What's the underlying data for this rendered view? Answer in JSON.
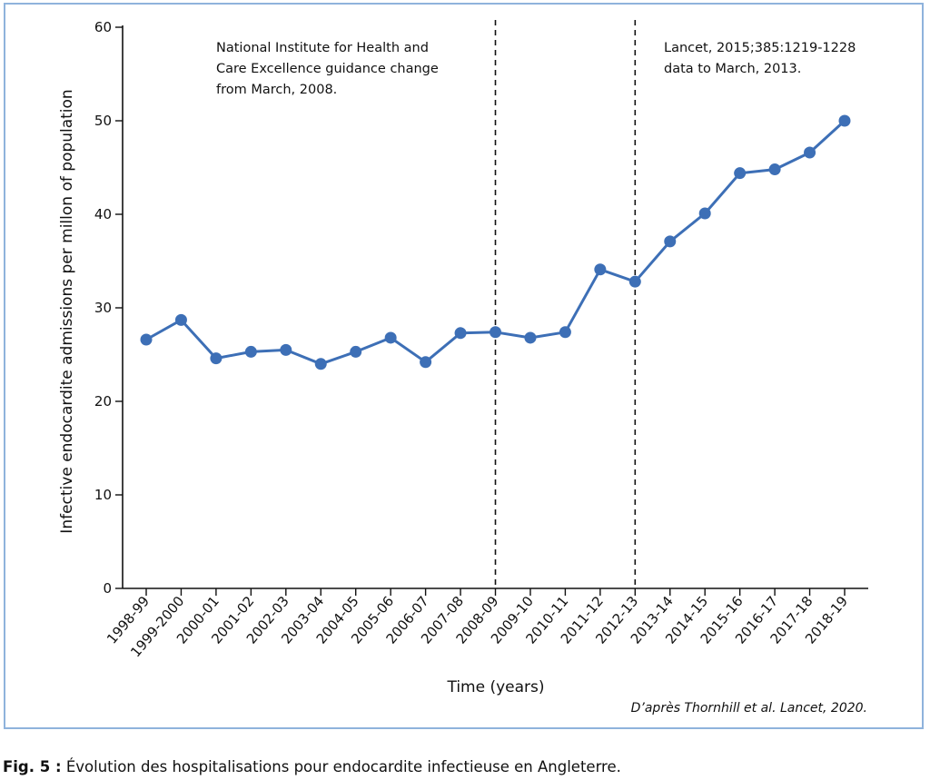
{
  "chart_data": {
    "type": "line",
    "categories": [
      "1998-99",
      "1999-2000",
      "2000-01",
      "2001-02",
      "2002-03",
      "2003-04",
      "2004-05",
      "2005-06",
      "2006-07",
      "2007-08",
      "2008-09",
      "2009-10",
      "2010-11",
      "2011-12",
      "2012-13",
      "2013-14",
      "2014-15",
      "2015-16",
      "2016-17",
      "2017-18",
      "2018-19"
    ],
    "series": [
      {
        "values": [
          26.6,
          28.7,
          24.6,
          25.3,
          25.5,
          24.0,
          25.3,
          26.8,
          24.2,
          27.3,
          27.4,
          26.8,
          27.4,
          34.1,
          32.8,
          37.1,
          40.1,
          44.4,
          44.8,
          46.6,
          50.0
        ]
      }
    ],
    "xlabel": "Time (years)",
    "ylabel": "Infective endocardite admissions per millon of population",
    "ylim": [
      0,
      60
    ],
    "yticks": [
      0,
      10,
      20,
      30,
      40,
      50,
      60
    ],
    "grid": false,
    "line_color": "#3d6fb6",
    "annotations": [
      {
        "at_category": "2008-09",
        "style": "dashed-vertical-line",
        "text": [
          "National Institute for Health and",
          "Care Excellence guidance change",
          "from March, 2008."
        ]
      },
      {
        "at_category": "2012-13",
        "style": "dashed-vertical-line",
        "text": [
          "Lancet, 2015;385:1219-1228",
          "data to March, 2013."
        ]
      }
    ],
    "source": "D’après Thornhill et al. Lancet, 2020."
  },
  "caption": {
    "label": "Fig.  5 :",
    "text": " Évolution des hospitalisations pour endocardite infectieuse en Angleterre."
  }
}
